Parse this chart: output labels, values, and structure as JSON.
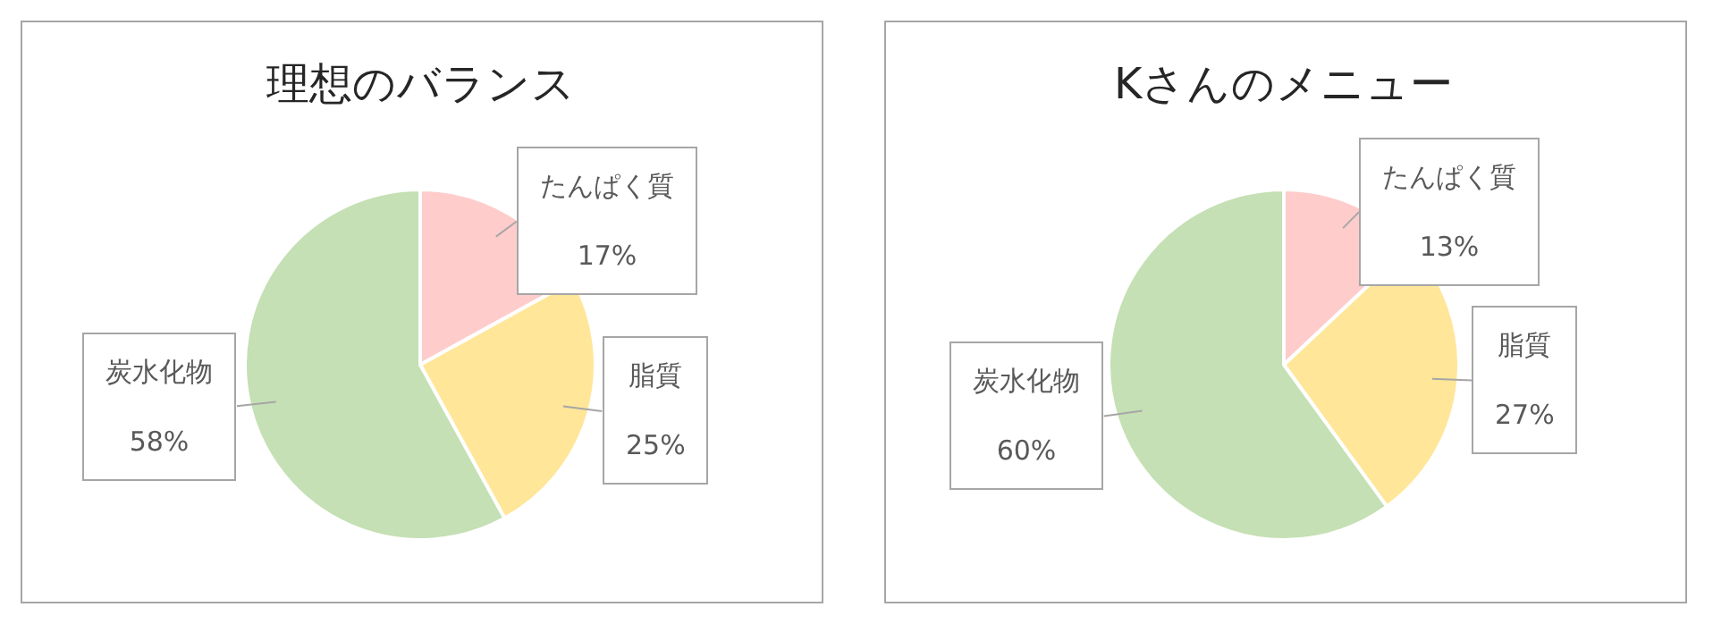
{
  "chart_data": [
    {
      "type": "pie",
      "title": "理想のバランス",
      "categories": [
        "たんぱく質",
        "脂質",
        "炭水化物"
      ],
      "values": [
        17,
        25,
        58
      ],
      "value_labels": [
        "17%",
        "25%",
        "58%"
      ],
      "colors": [
        "#ffcccc",
        "#ffe699",
        "#c5e0b4"
      ],
      "legend": false
    },
    {
      "type": "pie",
      "title": "Kさんのメニュー",
      "categories": [
        "たんぱく質",
        "脂質",
        "炭水化物"
      ],
      "values": [
        13,
        27,
        60
      ],
      "value_labels": [
        "13%",
        "27%",
        "60%"
      ],
      "colors": [
        "#ffcccc",
        "#ffe699",
        "#c5e0b4"
      ],
      "legend": false
    }
  ]
}
